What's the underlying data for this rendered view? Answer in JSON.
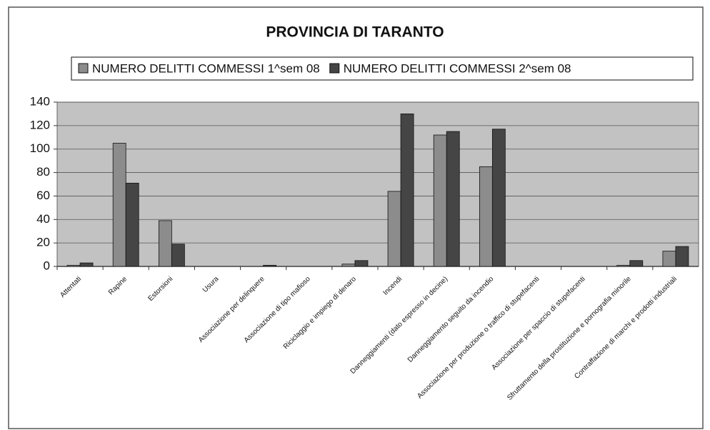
{
  "chart_data": {
    "type": "bar",
    "title": "PROVINCIA DI TARANTO",
    "categories": [
      "Attentati",
      "Rapine",
      "Estorsioni",
      "Usura",
      "Associazione per delinquere",
      "Associazione di tipo mafioso",
      "Riciclaggio e impiego di denaro",
      "Incendi",
      "Danneggiamenti (dato espresso in decine)",
      "Danneggiamento seguito da incendio",
      "Associazione per produzione o traffico di stupefacenti",
      "Associazione per spaccio di stupefacenti",
      "Sfruttamento della prostituzione e pornografia minorile",
      "Contraffazione di marchi e prodotti industriali"
    ],
    "series": [
      {
        "name": "NUMERO DELITTI COMMESSI 1^sem 08",
        "color": "#8c8c8c",
        "values": [
          1,
          105,
          39,
          0,
          0,
          0,
          2,
          64,
          112,
          85,
          0,
          0,
          1,
          13
        ]
      },
      {
        "name": "NUMERO DELITTI COMMESSI 2^sem 08",
        "color": "#454545",
        "values": [
          3,
          71,
          19,
          0,
          1,
          0,
          5,
          130,
          115,
          117,
          0,
          0,
          5,
          17
        ]
      }
    ],
    "ylim": [
      0,
      140
    ],
    "yticks": [
      0,
      20,
      40,
      60,
      80,
      100,
      120,
      140
    ],
    "grid": true,
    "legend": "top"
  }
}
